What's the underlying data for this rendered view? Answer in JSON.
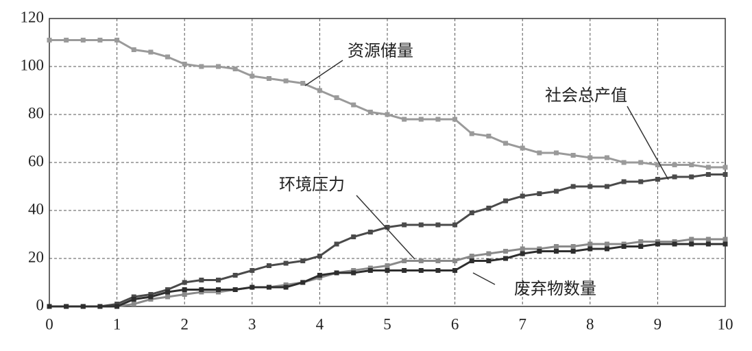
{
  "chart_data": {
    "type": "line",
    "x": [
      0,
      0.25,
      0.5,
      0.75,
      1,
      1.25,
      1.5,
      1.75,
      2,
      2.25,
      2.5,
      2.75,
      3,
      3.25,
      3.5,
      3.75,
      4,
      4.25,
      4.5,
      4.75,
      5,
      5.25,
      5.5,
      5.75,
      6,
      6.25,
      6.5,
      6.75,
      7,
      7.25,
      7.5,
      7.75,
      8,
      8.25,
      8.5,
      8.75,
      9,
      9.25,
      9.5,
      9.75,
      10
    ],
    "series": [
      {
        "name": "资源储量",
        "color": "#9a9a9a",
        "values": [
          111,
          111,
          111,
          111,
          111,
          107,
          106,
          104,
          101,
          100,
          100,
          99,
          96,
          95,
          94,
          93,
          90,
          87,
          84,
          81,
          80,
          78,
          78,
          78,
          78,
          72,
          71,
          68,
          66,
          64,
          64,
          63,
          62,
          62,
          60,
          60,
          59,
          59,
          59,
          58,
          58
        ]
      },
      {
        "name": "社会总产值",
        "color": "#4a4a4a",
        "values": [
          0,
          0,
          0,
          0,
          1,
          4,
          5,
          7,
          10,
          11,
          11,
          13,
          15,
          17,
          18,
          19,
          21,
          26,
          29,
          31,
          33,
          34,
          34,
          34,
          34,
          39,
          41,
          44,
          46,
          47,
          48,
          50,
          50,
          50,
          52,
          52,
          53,
          54,
          54,
          55,
          55
        ]
      },
      {
        "name": "环境压力",
        "color": "#8a8a8a",
        "values": [
          0,
          0,
          0,
          0,
          0,
          1,
          3,
          4,
          5,
          6,
          6,
          7,
          8,
          8,
          9,
          10,
          12,
          14,
          15,
          16,
          17,
          19,
          19,
          19,
          19,
          21,
          22,
          23,
          24,
          24,
          25,
          25,
          26,
          26,
          26,
          27,
          27,
          27,
          28,
          28,
          28
        ]
      },
      {
        "name": "废弃物数量",
        "color": "#2e2e2e",
        "values": [
          0,
          0,
          0,
          0,
          0,
          3,
          4,
          6,
          7,
          7,
          7,
          7,
          8,
          8,
          8,
          10,
          13,
          14,
          14,
          15,
          15,
          15,
          15,
          15,
          15,
          19,
          19,
          20,
          22,
          23,
          23,
          23,
          24,
          24,
          25,
          25,
          26,
          26,
          26,
          26,
          26
        ]
      }
    ],
    "xlim": [
      0,
      10
    ],
    "xticks": [
      0,
      1,
      2,
      3,
      4,
      5,
      6,
      7,
      8,
      9,
      10
    ],
    "ylim": [
      0,
      120
    ],
    "yticks": [
      0,
      20,
      40,
      60,
      80,
      100,
      120
    ],
    "grid": true
  }
}
